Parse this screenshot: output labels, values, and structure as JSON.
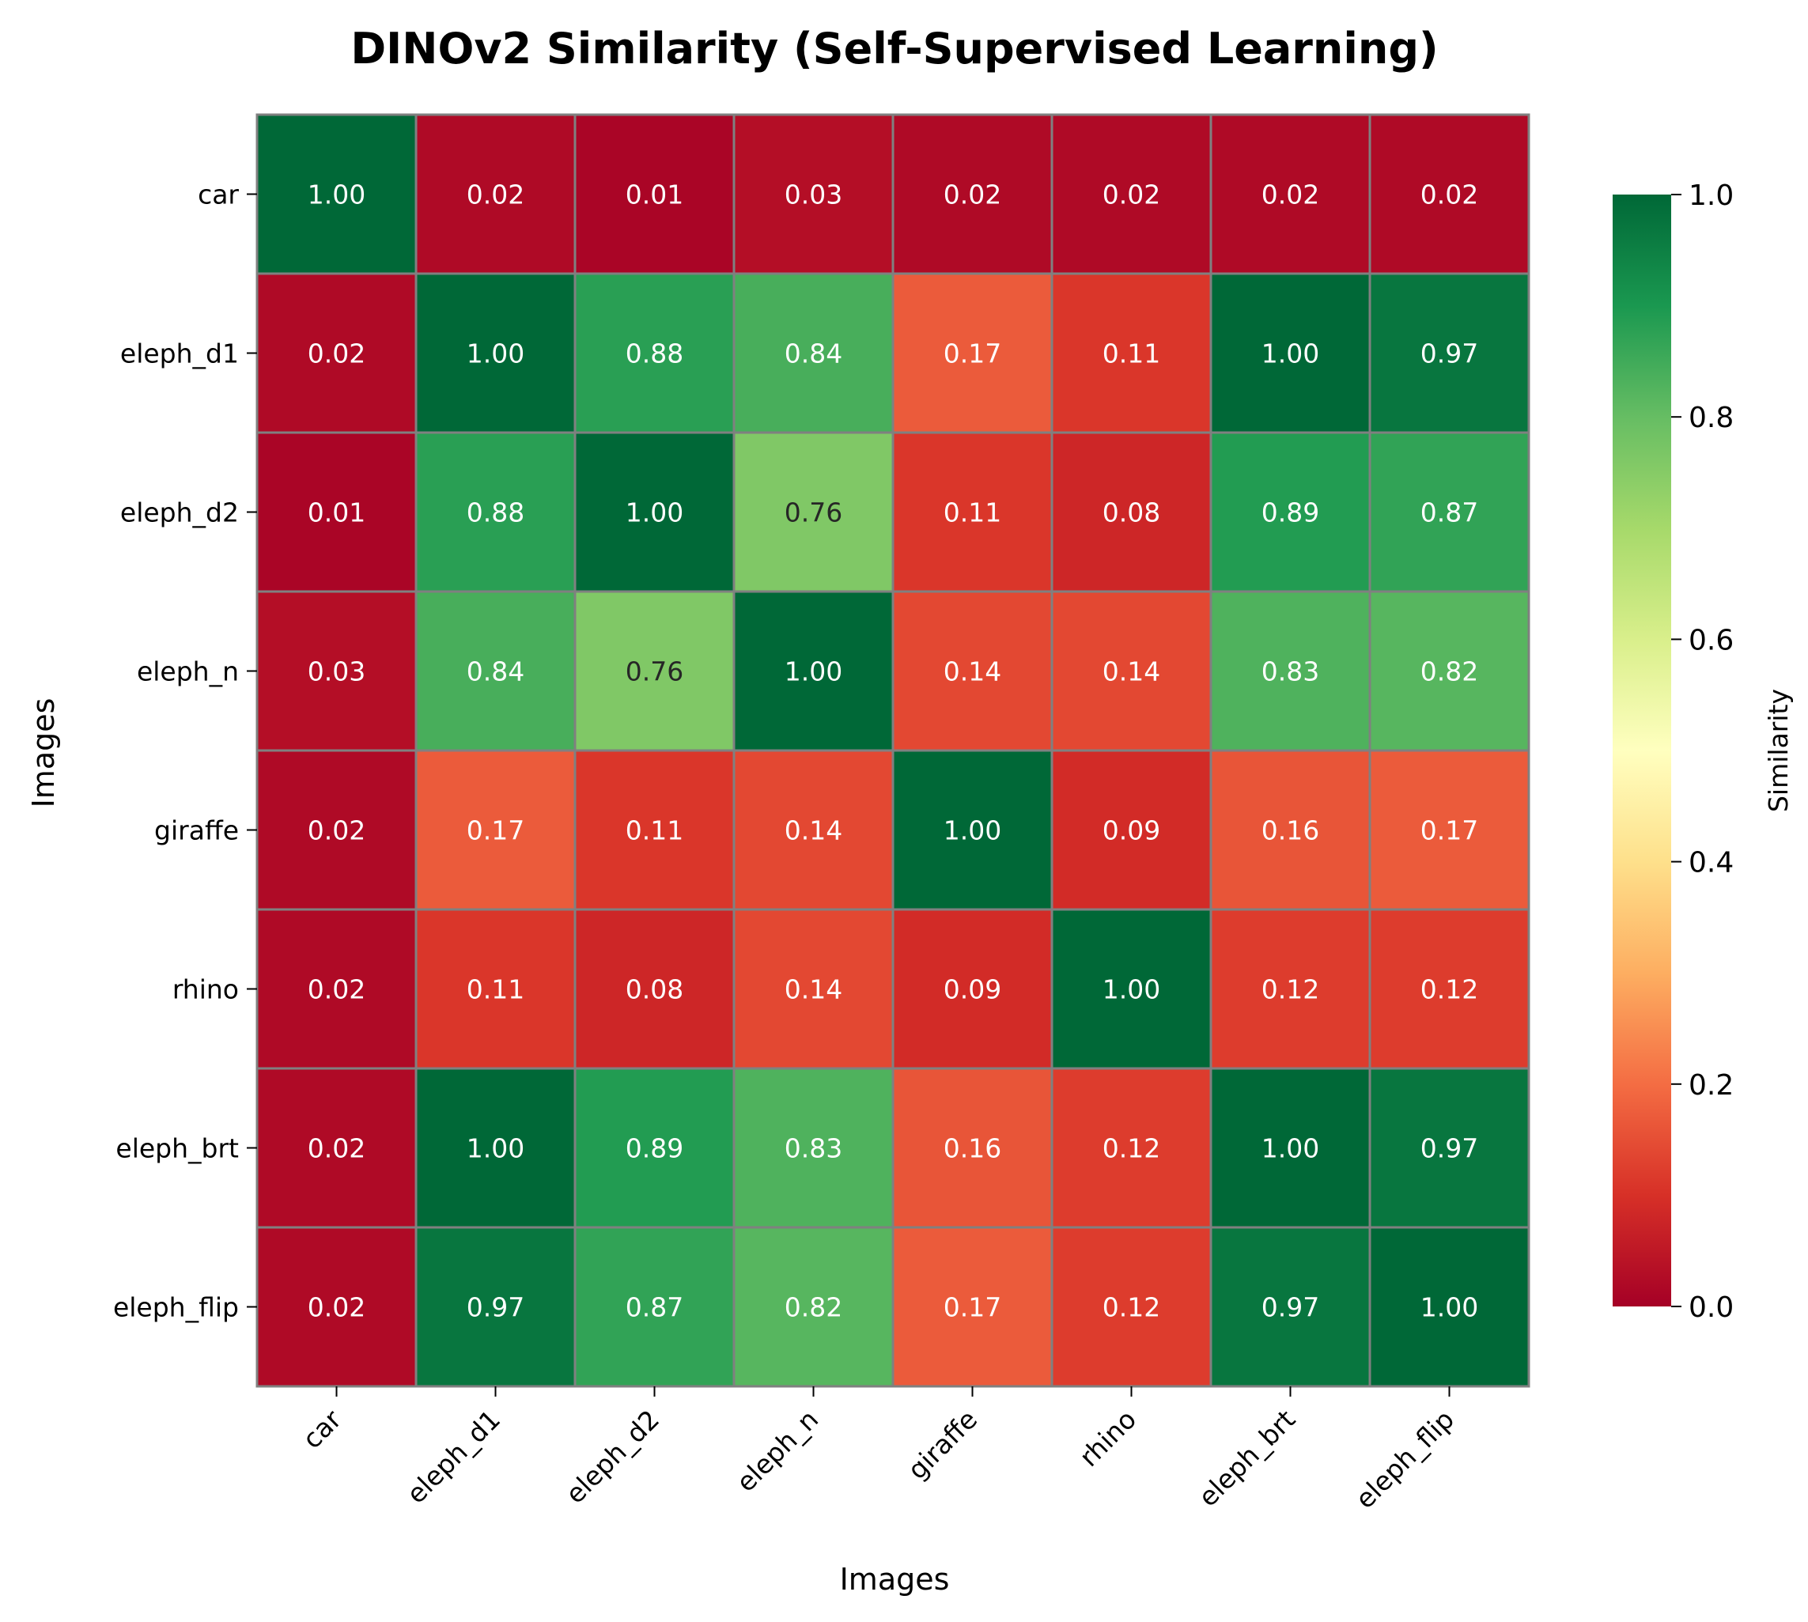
{
  "chart_data": {
    "type": "heatmap",
    "title": "DINOv2 Similarity (Self-Supervised Learning)",
    "xlabel": "Images",
    "ylabel": "Images",
    "x_categories": [
      "car",
      "eleph_d1",
      "eleph_d2",
      "eleph_n",
      "giraffe",
      "rhino",
      "eleph_brt",
      "eleph_flip"
    ],
    "y_categories": [
      "car",
      "eleph_d1",
      "eleph_d2",
      "eleph_n",
      "giraffe",
      "rhino",
      "eleph_brt",
      "eleph_flip"
    ],
    "values": [
      [
        1.0,
        0.02,
        0.01,
        0.03,
        0.02,
        0.02,
        0.02,
        0.02
      ],
      [
        0.02,
        1.0,
        0.88,
        0.84,
        0.17,
        0.11,
        1.0,
        0.97
      ],
      [
        0.01,
        0.88,
        1.0,
        0.76,
        0.11,
        0.08,
        0.89,
        0.87
      ],
      [
        0.03,
        0.84,
        0.76,
        1.0,
        0.14,
        0.14,
        0.83,
        0.82
      ],
      [
        0.02,
        0.17,
        0.11,
        0.14,
        1.0,
        0.09,
        0.16,
        0.17
      ],
      [
        0.02,
        0.11,
        0.08,
        0.14,
        0.09,
        1.0,
        0.12,
        0.12
      ],
      [
        0.02,
        1.0,
        0.89,
        0.83,
        0.16,
        0.12,
        1.0,
        0.97
      ],
      [
        0.02,
        0.97,
        0.87,
        0.82,
        0.17,
        0.12,
        0.97,
        1.0
      ]
    ],
    "value_format_decimals": 2,
    "colorbar": {
      "label": "Similarity",
      "range": [
        0.0,
        1.0
      ],
      "ticks": [
        "0.0",
        "0.2",
        "0.4",
        "0.6",
        "0.8",
        "1.0"
      ],
      "colormap": "RdYlGn",
      "colors": [
        "#a50026",
        "#d73027",
        "#f46d43",
        "#fdae61",
        "#fee08b",
        "#ffffbf",
        "#d9ef8b",
        "#a6d96a",
        "#66bd63",
        "#1a9850",
        "#006837"
      ]
    },
    "cell_border_color": "#808080",
    "annotation_dark_text_color": "#262626",
    "annotation_light_text_color": "#ffffff"
  }
}
